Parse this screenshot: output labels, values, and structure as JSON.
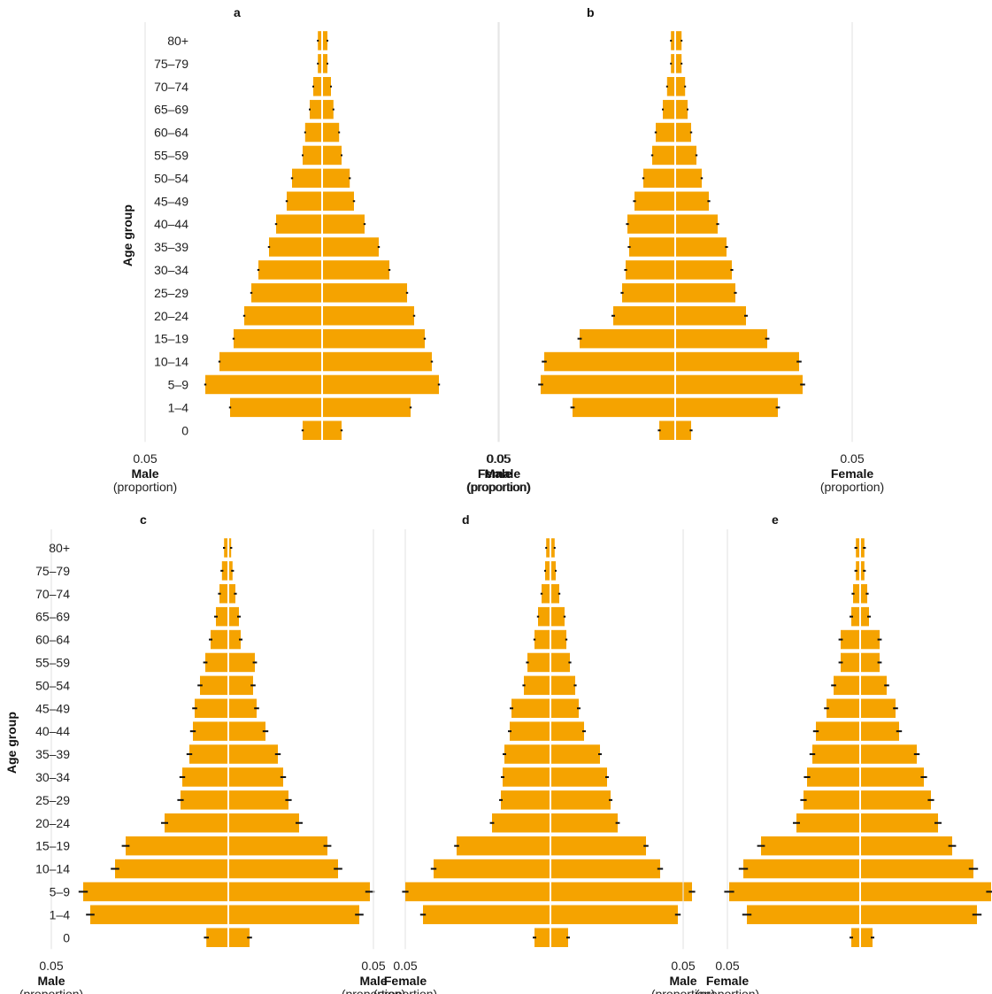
{
  "chart_data": {
    "type": "bar",
    "subtype": "population-pyramid",
    "categories": [
      "0",
      "1–4",
      "5–9",
      "10–14",
      "15–19",
      "20–24",
      "25–29",
      "30–34",
      "35–39",
      "40–44",
      "45–49",
      "50–54",
      "55–59",
      "60–64",
      "65–69",
      "70–74",
      "75–79",
      "80+"
    ],
    "ylabel": "Age group",
    "male_title": "Male",
    "female_title": "Female",
    "unit_label": "(proportion)",
    "grid_value": 0.05,
    "grid_label": "0.05",
    "error_bars": true,
    "grid": true,
    "colors": {
      "bar": "#F5A300",
      "error": "#111111",
      "grid": "#e6e6e6",
      "divider": "#ffffff"
    },
    "panels": [
      {
        "label": "a",
        "male": [
          0.0055,
          0.026,
          0.033,
          0.029,
          0.025,
          0.022,
          0.02,
          0.018,
          0.015,
          0.013,
          0.01,
          0.0085,
          0.0055,
          0.0048,
          0.0035,
          0.0025,
          0.0012,
          0.0012
        ],
        "female": [
          0.0055,
          0.025,
          0.033,
          0.031,
          0.029,
          0.026,
          0.024,
          0.019,
          0.016,
          0.012,
          0.009,
          0.0078,
          0.0055,
          0.0048,
          0.0032,
          0.0025,
          0.0015,
          0.0015
        ],
        "male_err": [
          0.0003,
          0.0003,
          0.0003,
          0.0003,
          0.0003,
          0.0003,
          0.0003,
          0.0003,
          0.0003,
          0.0003,
          0.0003,
          0.0003,
          0.0002,
          0.0002,
          0.0002,
          0.0002,
          0.0002,
          0.0002
        ],
        "female_err": [
          0.0003,
          0.0003,
          0.0003,
          0.0003,
          0.0003,
          0.0003,
          0.0003,
          0.0003,
          0.0003,
          0.0003,
          0.0003,
          0.0003,
          0.0002,
          0.0002,
          0.0002,
          0.0002,
          0.0002,
          0.0002
        ]
      },
      {
        "label": "b",
        "male": [
          0.0045,
          0.029,
          0.038,
          0.037,
          0.027,
          0.0175,
          0.015,
          0.014,
          0.013,
          0.0135,
          0.0115,
          0.009,
          0.0065,
          0.0055,
          0.0035,
          0.0023,
          0.0012,
          0.0012
        ],
        "female": [
          0.0045,
          0.029,
          0.036,
          0.035,
          0.026,
          0.02,
          0.017,
          0.016,
          0.0145,
          0.012,
          0.0095,
          0.0075,
          0.006,
          0.0045,
          0.0035,
          0.0028,
          0.0018,
          0.0018
        ],
        "male_err": [
          0.0004,
          0.0006,
          0.0007,
          0.0007,
          0.0006,
          0.0005,
          0.0004,
          0.0004,
          0.0004,
          0.0004,
          0.0004,
          0.0003,
          0.0003,
          0.0003,
          0.0002,
          0.0002,
          0.0002,
          0.0002
        ],
        "female_err": [
          0.0004,
          0.0006,
          0.0007,
          0.0007,
          0.0006,
          0.0005,
          0.0004,
          0.0004,
          0.0004,
          0.0004,
          0.0004,
          0.0003,
          0.0003,
          0.0003,
          0.0002,
          0.0002,
          0.0002,
          0.0002
        ]
      },
      {
        "label": "c",
        "male": [
          0.0062,
          0.039,
          0.041,
          0.032,
          0.029,
          0.018,
          0.0135,
          0.013,
          0.011,
          0.01,
          0.0095,
          0.008,
          0.0065,
          0.005,
          0.0035,
          0.0025,
          0.0018,
          0.0012
        ],
        "female": [
          0.006,
          0.037,
          0.04,
          0.031,
          0.028,
          0.02,
          0.017,
          0.0155,
          0.014,
          0.0105,
          0.008,
          0.007,
          0.0075,
          0.0035,
          0.003,
          0.002,
          0.0012,
          0.0008
        ],
        "male_err": [
          0.0007,
          0.0012,
          0.0013,
          0.0012,
          0.0011,
          0.001,
          0.0009,
          0.0008,
          0.0008,
          0.0008,
          0.0007,
          0.0007,
          0.0006,
          0.0005,
          0.0005,
          0.0004,
          0.0004,
          0.0003
        ],
        "female_err": [
          0.0007,
          0.0012,
          0.0013,
          0.0012,
          0.0011,
          0.001,
          0.0009,
          0.0008,
          0.0008,
          0.0008,
          0.0007,
          0.0007,
          0.0006,
          0.0005,
          0.0005,
          0.0004,
          0.0004,
          0.0003
        ]
      },
      {
        "label": "d",
        "male": [
          0.0045,
          0.036,
          0.041,
          0.033,
          0.0265,
          0.0165,
          0.014,
          0.0135,
          0.013,
          0.0115,
          0.011,
          0.0075,
          0.0065,
          0.0045,
          0.0035,
          0.0025,
          0.0015,
          0.0012
        ],
        "female": [
          0.005,
          0.036,
          0.04,
          0.031,
          0.027,
          0.019,
          0.017,
          0.016,
          0.014,
          0.0095,
          0.008,
          0.007,
          0.0055,
          0.0045,
          0.004,
          0.0025,
          0.0015,
          0.0012
        ],
        "male_err": [
          0.0005,
          0.0008,
          0.0009,
          0.0008,
          0.0007,
          0.0006,
          0.0005,
          0.0005,
          0.0005,
          0.0005,
          0.0005,
          0.0004,
          0.0004,
          0.0003,
          0.0003,
          0.0003,
          0.0002,
          0.0002
        ],
        "female_err": [
          0.0005,
          0.0008,
          0.0009,
          0.0008,
          0.0007,
          0.0006,
          0.0005,
          0.0005,
          0.0005,
          0.0005,
          0.0005,
          0.0004,
          0.0004,
          0.0003,
          0.0003,
          0.0003,
          0.0002,
          0.0002
        ]
      },
      {
        "label": "e",
        "male": [
          0.0025,
          0.032,
          0.037,
          0.033,
          0.028,
          0.018,
          0.016,
          0.015,
          0.0135,
          0.0125,
          0.0095,
          0.0075,
          0.0055,
          0.0055,
          0.0025,
          0.002,
          0.0012,
          0.0012
        ],
        "female": [
          0.0035,
          0.033,
          0.037,
          0.032,
          0.026,
          0.022,
          0.02,
          0.018,
          0.016,
          0.011,
          0.01,
          0.0075,
          0.0055,
          0.0055,
          0.0025,
          0.002,
          0.0012,
          0.0012
        ],
        "male_err": [
          0.0005,
          0.0013,
          0.0014,
          0.0013,
          0.0011,
          0.001,
          0.0009,
          0.0009,
          0.0008,
          0.0008,
          0.0007,
          0.0007,
          0.0006,
          0.0006,
          0.0005,
          0.0004,
          0.0004,
          0.0004
        ],
        "female_err": [
          0.0005,
          0.0013,
          0.0014,
          0.0013,
          0.0011,
          0.001,
          0.0009,
          0.0009,
          0.0008,
          0.0008,
          0.0007,
          0.0007,
          0.0006,
          0.0006,
          0.0005,
          0.0004,
          0.0004,
          0.0004
        ]
      }
    ]
  }
}
